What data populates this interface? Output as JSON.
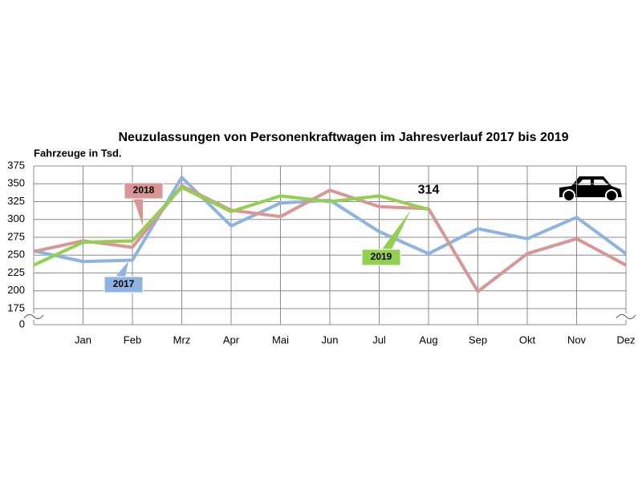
{
  "chart_data": {
    "type": "line",
    "title": "Neuzulassungen von Personenkraftwagen im Jahresverlauf 2017 bis 2019",
    "y_label": "Fahrzeuge in Tsd.",
    "categories": [
      null,
      "Jan",
      "Feb",
      "Mrz",
      "Apr",
      "Mai",
      "Jun",
      "Jul",
      "Aug",
      "Sep",
      "Okt",
      "Nov",
      "Dez"
    ],
    "series": [
      {
        "name": "2017",
        "color": "#8db3e2",
        "values": [
          256,
          241,
          243,
          359,
          291,
          323,
          327,
          283,
          252,
          287,
          273,
          303,
          252
        ]
      },
      {
        "name": "2018",
        "color": "#d99694",
        "values": [
          255,
          270,
          261,
          347,
          313,
          304,
          341,
          318,
          315,
          199,
          252,
          273,
          236
        ]
      },
      {
        "name": "2019",
        "color": "#92d050",
        "values": [
          236,
          268,
          270,
          345,
          311,
          333,
          325,
          333,
          314,
          null,
          null,
          null,
          null
        ],
        "data_labels": "last"
      }
    ],
    "ylim": [
      175,
      375
    ],
    "yticks": [
      0,
      175,
      200,
      225,
      250,
      275,
      300,
      325,
      350,
      375
    ],
    "axis_break": true,
    "grid": true
  }
}
